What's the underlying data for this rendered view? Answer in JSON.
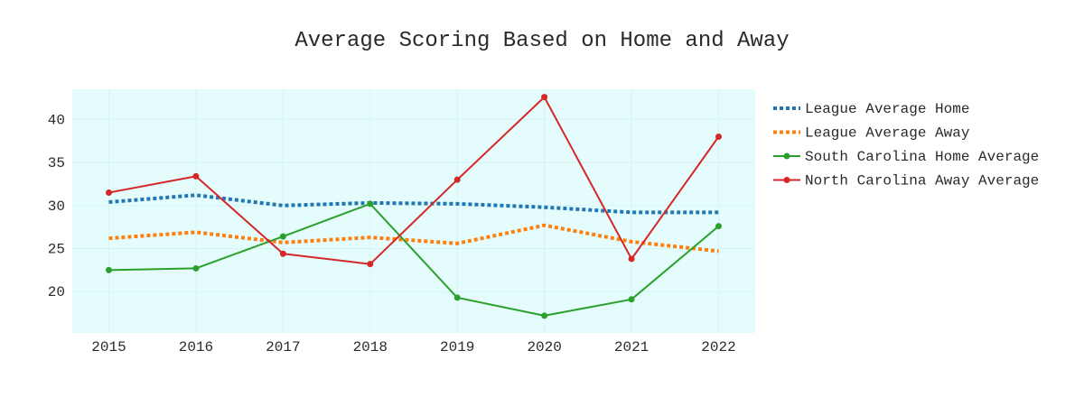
{
  "chart_data": {
    "type": "line",
    "title": "Average Scoring Based on Home and Away",
    "xlabel": "",
    "ylabel": "",
    "x": [
      2015,
      2016,
      2017,
      2018,
      2019,
      2020,
      2021,
      2022
    ],
    "x_tick_labels": [
      "2015",
      "2016",
      "2017",
      "2018",
      "2019",
      "2020",
      "2021",
      "2022"
    ],
    "y_ticks": [
      20,
      25,
      30,
      35,
      40
    ],
    "y_tick_labels": [
      "20",
      "25",
      "30",
      "35",
      "40"
    ],
    "xlim": [
      2014.58,
      2022.42
    ],
    "ylim": [
      15.2,
      43.5
    ],
    "grid": true,
    "legend_position": "right",
    "plot_background": "#e5fcfc",
    "series": [
      {
        "name": "League Average Home",
        "color": "#1f77b4",
        "style": "dotted",
        "markers": false,
        "values": [
          30.4,
          31.2,
          30.0,
          30.3,
          30.2,
          29.8,
          29.2,
          29.2
        ]
      },
      {
        "name": "League Average Away",
        "color": "#ff7f0e",
        "style": "dotted",
        "markers": false,
        "values": [
          26.2,
          26.9,
          25.7,
          26.3,
          25.6,
          27.7,
          25.8,
          24.7
        ]
      },
      {
        "name": "South Carolina Home Average",
        "color": "#2ca02c",
        "style": "solid",
        "markers": true,
        "values": [
          22.5,
          22.7,
          26.4,
          30.2,
          19.3,
          17.2,
          19.1,
          27.6
        ]
      },
      {
        "name": "North Carolina Away Average",
        "color": "#d62728",
        "style": "solid",
        "markers": true,
        "values": [
          31.5,
          33.4,
          24.4,
          23.2,
          33.0,
          42.6,
          23.8,
          38.0
        ]
      }
    ]
  }
}
